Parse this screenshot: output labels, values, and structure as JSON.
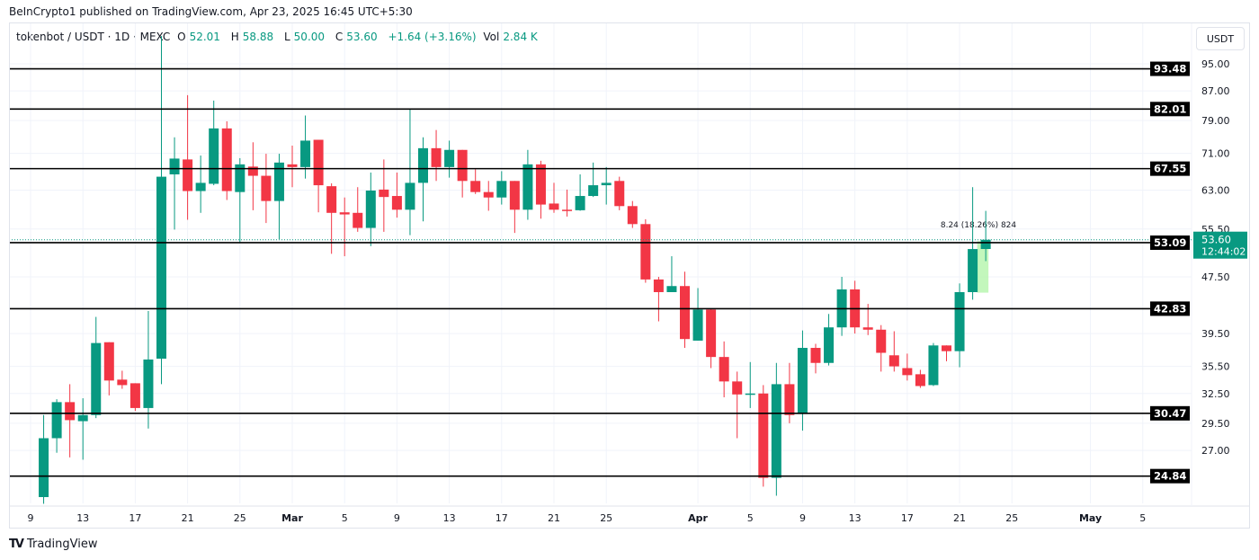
{
  "header": {
    "published": "BeInCrypto1 published on TradingView.com, Apr 23, 2025 16:45 UTC+5:30",
    "symbol": "tokenbot / USDT · 1D · MEXC",
    "open_label": "O",
    "open": "52.01",
    "high_label": "H",
    "high": "58.88",
    "low_label": "L",
    "low": "50.00",
    "close_label": "C",
    "close": "53.60",
    "change": "+1.64 (+3.16%)",
    "vol_label": "Vol",
    "vol": "2.84 K",
    "currency_button": "USDT"
  },
  "footer": {
    "logo_text": "TradingView",
    "logo_mark": "TV"
  },
  "chart_data": {
    "type": "candlestick",
    "y_scale": "log",
    "ylim": [
      22.0,
      106.0
    ],
    "xlim": [
      "2025-02-08",
      "2025-05-08"
    ],
    "grid": true,
    "colors": {
      "up": "#089981",
      "down": "#f23645",
      "level": "#000000",
      "measure": "#b9f6b0"
    },
    "y_ticks": [
      "95.00",
      "87.00",
      "79.00",
      "71.00",
      "63.00",
      "55.50",
      "47.50",
      "39.50",
      "35.50",
      "32.50",
      "29.50",
      "27.00"
    ],
    "x_ticks": [
      {
        "date": "2025-02-09",
        "label": "9"
      },
      {
        "date": "2025-02-13",
        "label": "13"
      },
      {
        "date": "2025-02-17",
        "label": "17"
      },
      {
        "date": "2025-02-21",
        "label": "21"
      },
      {
        "date": "2025-02-25",
        "label": "25"
      },
      {
        "date": "2025-03-01",
        "label": "Mar",
        "bold": true
      },
      {
        "date": "2025-03-05",
        "label": "5"
      },
      {
        "date": "2025-03-09",
        "label": "9"
      },
      {
        "date": "2025-03-13",
        "label": "13"
      },
      {
        "date": "2025-03-17",
        "label": "17"
      },
      {
        "date": "2025-03-21",
        "label": "21"
      },
      {
        "date": "2025-03-25",
        "label": "25"
      },
      {
        "date": "2025-04-01",
        "label": "Apr",
        "bold": true
      },
      {
        "date": "2025-04-05",
        "label": "5"
      },
      {
        "date": "2025-04-09",
        "label": "9"
      },
      {
        "date": "2025-04-13",
        "label": "13"
      },
      {
        "date": "2025-04-17",
        "label": "17"
      },
      {
        "date": "2025-04-21",
        "label": "21"
      },
      {
        "date": "2025-04-25",
        "label": "25"
      },
      {
        "date": "2025-05-01",
        "label": "May",
        "bold": true
      },
      {
        "date": "2025-05-05",
        "label": "5"
      }
    ],
    "levels": [
      "93.48",
      "82.01",
      "67.55",
      "53.09",
      "42.83",
      "30.47",
      "24.84"
    ],
    "last_price": {
      "value": "53.60",
      "countdown": "12:44:02"
    },
    "measure": {
      "from": 45.12,
      "to": 53.36,
      "start": "2025-04-22",
      "end": "2025-04-23",
      "label": "8.24 (18.26%) 824"
    },
    "candles_columns": [
      "date",
      "open",
      "high",
      "low",
      "close"
    ],
    "candles": [
      [
        "2025-02-10",
        23.2,
        30.3,
        22.7,
        28.1
      ],
      [
        "2025-02-11",
        28.1,
        31.9,
        26.8,
        31.6
      ],
      [
        "2025-02-12",
        31.6,
        33.5,
        26.4,
        29.8
      ],
      [
        "2025-02-13",
        29.7,
        32.0,
        26.2,
        30.3
      ],
      [
        "2025-02-14",
        30.3,
        41.7,
        30.0,
        38.3
      ],
      [
        "2025-02-15",
        38.4,
        38.4,
        32.3,
        33.9
      ],
      [
        "2025-02-16",
        34.0,
        35.0,
        33.0,
        33.4
      ],
      [
        "2025-02-17",
        33.6,
        33.6,
        30.7,
        31.0
      ],
      [
        "2025-02-18",
        31.0,
        42.5,
        29.0,
        36.3
      ],
      [
        "2025-02-19",
        36.4,
        104,
        33.5,
        65.8
      ],
      [
        "2025-02-20",
        66.3,
        74.8,
        55.4,
        69.8
      ],
      [
        "2025-02-21",
        69.6,
        85.8,
        57.2,
        62.8
      ],
      [
        "2025-02-22",
        62.8,
        70.5,
        58.5,
        64.5
      ],
      [
        "2025-02-23",
        64.3,
        84.3,
        64.0,
        77.0
      ],
      [
        "2025-02-24",
        77.0,
        78.8,
        61.0,
        62.8
      ],
      [
        "2025-02-25",
        62.6,
        69.9,
        53.0,
        68.5
      ],
      [
        "2025-02-26",
        68.0,
        73.6,
        59.0,
        66.0
      ],
      [
        "2025-02-27",
        66.0,
        70.9,
        56.6,
        60.8
      ],
      [
        "2025-02-28",
        60.8,
        70.9,
        53.7,
        68.9
      ],
      [
        "2025-03-01",
        68.5,
        72.8,
        63.6,
        67.9
      ],
      [
        "2025-03-02",
        67.9,
        80.3,
        65.4,
        74.0
      ],
      [
        "2025-03-03",
        74.2,
        74.2,
        58.6,
        64.0
      ],
      [
        "2025-03-04",
        63.8,
        64.4,
        51.2,
        58.5
      ],
      [
        "2025-03-05",
        58.6,
        61.5,
        50.8,
        58.2
      ],
      [
        "2025-03-06",
        58.5,
        63.6,
        55.0,
        55.7
      ],
      [
        "2025-03-07",
        55.7,
        66.7,
        52.5,
        62.9
      ],
      [
        "2025-03-08",
        63.1,
        69.6,
        55.0,
        61.6
      ],
      [
        "2025-03-09",
        61.8,
        66.7,
        57.6,
        59.1
      ],
      [
        "2025-03-10",
        59.1,
        82.0,
        54.4,
        64.5
      ],
      [
        "2025-03-11",
        64.5,
        74.8,
        56.9,
        72.2
      ],
      [
        "2025-03-12",
        72.2,
        76.6,
        64.9,
        67.9
      ],
      [
        "2025-03-13",
        67.9,
        74.0,
        65.6,
        71.8
      ],
      [
        "2025-03-14",
        71.8,
        71.8,
        61.5,
        64.9
      ],
      [
        "2025-03-15",
        64.9,
        67.4,
        62.2,
        62.6
      ],
      [
        "2025-03-16",
        62.6,
        64.9,
        58.9,
        61.5
      ],
      [
        "2025-03-17",
        61.5,
        67.0,
        60.1,
        64.9
      ],
      [
        "2025-03-18",
        64.9,
        64.9,
        54.8,
        59.1
      ],
      [
        "2025-03-19",
        59.1,
        71.8,
        57.2,
        68.5
      ],
      [
        "2025-03-20",
        68.5,
        69.3,
        57.4,
        60.1
      ],
      [
        "2025-03-21",
        60.3,
        64.5,
        58.5,
        59.1
      ],
      [
        "2025-03-22",
        59.1,
        63.1,
        57.8,
        58.9
      ],
      [
        "2025-03-23",
        59.0,
        66.3,
        58.9,
        61.8
      ],
      [
        "2025-03-24",
        61.8,
        68.9,
        61.6,
        64.0
      ],
      [
        "2025-03-25",
        64.0,
        67.9,
        60.1,
        64.5
      ],
      [
        "2025-03-26",
        64.9,
        65.8,
        59.0,
        59.8
      ],
      [
        "2025-03-27",
        59.8,
        60.8,
        55.7,
        56.4
      ],
      [
        "2025-03-28",
        56.4,
        57.3,
        46.6,
        47.1
      ],
      [
        "2025-03-29",
        47.1,
        47.5,
        41.1,
        45.2
      ],
      [
        "2025-03-30",
        45.2,
        50.8,
        45.2,
        46.1
      ],
      [
        "2025-03-31",
        46.1,
        48.3,
        37.7,
        38.8
      ],
      [
        "2025-04-01",
        38.6,
        45.8,
        38.6,
        42.7
      ],
      [
        "2025-04-02",
        42.7,
        42.8,
        35.3,
        36.6
      ],
      [
        "2025-04-03",
        36.6,
        38.5,
        32.1,
        33.8
      ],
      [
        "2025-04-04",
        33.8,
        34.9,
        28.1,
        32.4
      ],
      [
        "2025-04-05",
        32.4,
        36.0,
        31.0,
        32.5
      ],
      [
        "2025-04-06",
        32.5,
        33.4,
        24.0,
        24.7
      ],
      [
        "2025-04-07",
        24.7,
        35.9,
        23.3,
        33.5
      ],
      [
        "2025-04-08",
        33.5,
        35.9,
        29.5,
        30.3
      ],
      [
        "2025-04-09",
        30.4,
        39.9,
        28.8,
        37.7
      ],
      [
        "2025-04-10",
        37.7,
        38.2,
        34.7,
        35.9
      ],
      [
        "2025-04-11",
        35.9,
        42.1,
        35.6,
        40.3
      ],
      [
        "2025-04-12",
        40.3,
        47.5,
        39.2,
        45.6
      ],
      [
        "2025-04-13",
        45.6,
        46.9,
        39.5,
        40.3
      ],
      [
        "2025-04-14",
        40.3,
        43.5,
        39.3,
        40.0
      ],
      [
        "2025-04-15",
        40.0,
        40.6,
        34.9,
        37.1
      ],
      [
        "2025-04-16",
        36.8,
        39.8,
        34.9,
        35.5
      ],
      [
        "2025-04-17",
        35.3,
        37.0,
        33.9,
        34.5
      ],
      [
        "2025-04-18",
        34.6,
        35.1,
        33.1,
        33.3
      ],
      [
        "2025-04-19",
        33.4,
        38.3,
        33.3,
        38.0
      ],
      [
        "2025-04-20",
        38.0,
        38.0,
        36.1,
        37.3
      ],
      [
        "2025-04-21",
        37.3,
        46.5,
        35.4,
        45.2
      ],
      [
        "2025-04-22",
        45.2,
        63.6,
        44.1,
        52.0
      ],
      [
        "2025-04-23",
        52.01,
        58.88,
        50.0,
        53.6
      ]
    ]
  }
}
